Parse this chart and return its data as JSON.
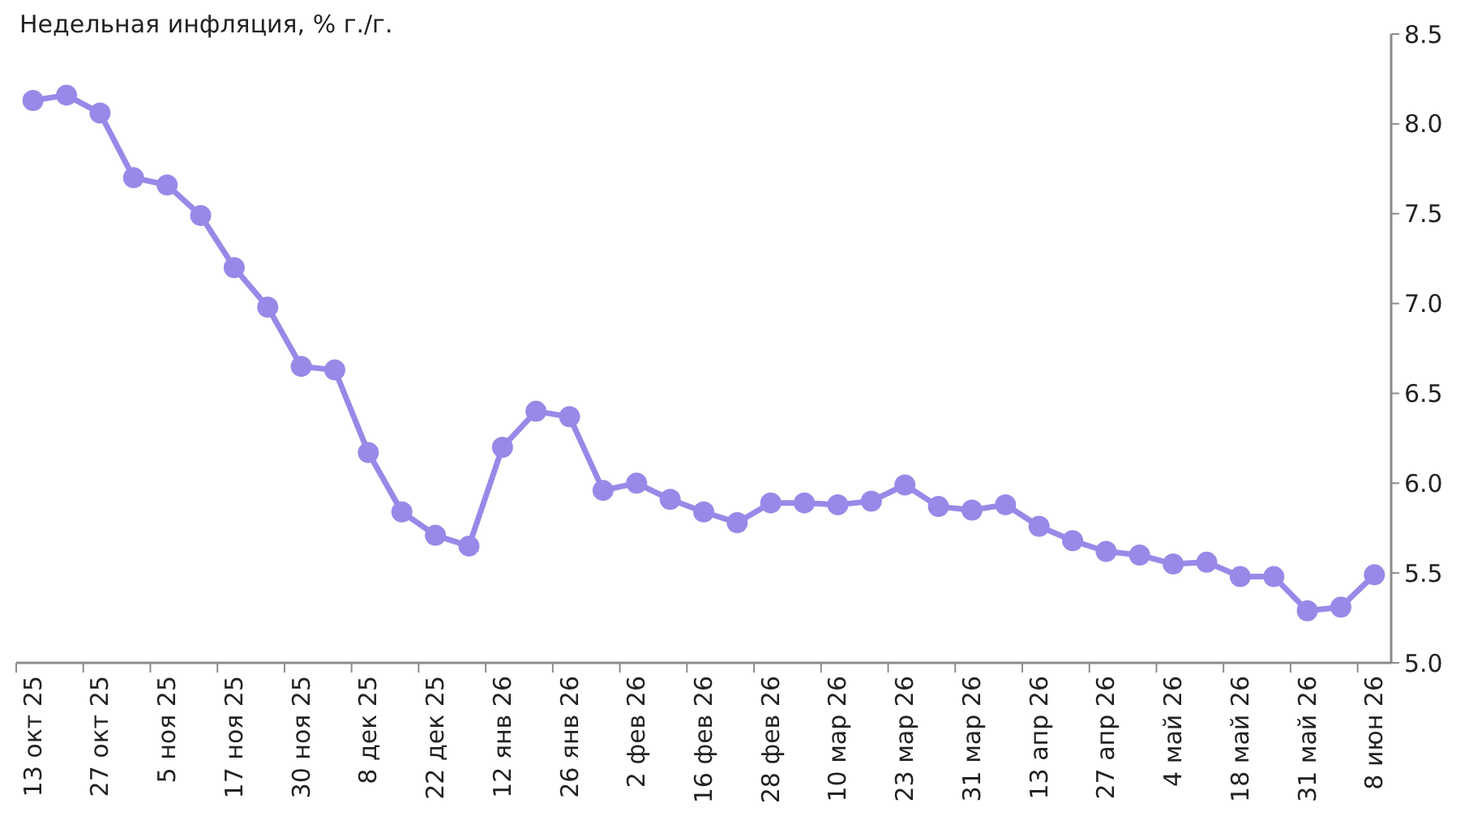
{
  "chart_data": {
    "type": "line",
    "title": "Недельная инфляция, % г./г.",
    "categories": [
      "13 окт 25",
      null,
      "27 окт 25",
      null,
      "5 ноя 25",
      null,
      "17 ноя 25",
      null,
      "30 ноя 25",
      null,
      "8 дек 25",
      null,
      "22 дек 25",
      null,
      "12 янв 26",
      null,
      "26 янв 26",
      null,
      "2 фев 26",
      null,
      "16 фев 26",
      null,
      "28 фев 26",
      null,
      "10 мар 26",
      null,
      "23 мар 26",
      null,
      "31 мар 26",
      null,
      "13 апр 26",
      null,
      "27 апр 26",
      null,
      "4 май 26",
      null,
      "18 май 26",
      null,
      "31 май 26",
      null,
      "8 июн 26"
    ],
    "series": [
      {
        "color": "#9a88e8",
        "values": [
          8.13,
          8.16,
          8.06,
          7.7,
          7.66,
          7.49,
          7.2,
          6.98,
          6.65,
          6.63,
          6.17,
          5.84,
          5.71,
          5.65,
          6.2,
          6.4,
          6.37,
          5.96,
          6.0,
          5.91,
          5.84,
          5.78,
          5.89,
          5.89,
          5.88,
          5.9,
          5.99,
          5.87,
          5.85,
          5.88,
          5.76,
          5.68,
          5.62,
          5.6,
          5.55,
          5.56,
          5.48,
          5.48,
          5.29,
          5.31,
          5.49
        ]
      }
    ],
    "ylim": [
      5.0,
      8.5
    ],
    "yticks": [
      {
        "value": 5.0,
        "label": "5.0"
      },
      {
        "value": 5.5,
        "label": "5.5"
      },
      {
        "value": 6.0,
        "label": "6.0"
      },
      {
        "value": 6.5,
        "label": "6.5"
      },
      {
        "value": 7.0,
        "label": "7.0"
      },
      {
        "value": 7.5,
        "label": "7.5"
      },
      {
        "value": 8.0,
        "label": "8.0"
      },
      {
        "value": 8.5,
        "label": "8.5"
      }
    ],
    "grid": false,
    "marker": "circle",
    "line_style": "solid"
  }
}
